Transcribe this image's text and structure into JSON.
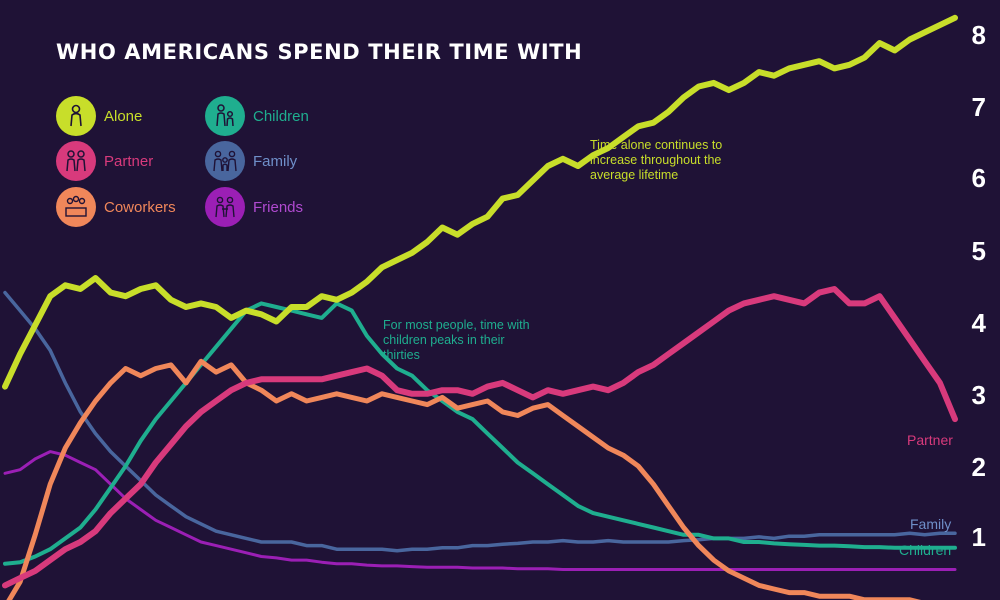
{
  "header": {
    "title": "WHO AMERICANS SPEND THEIR TIME WITH"
  },
  "legend": [
    {
      "key": "alone",
      "label": "Alone",
      "color": "#c8de2a",
      "icon": "person-icon"
    },
    {
      "key": "partner",
      "label": "Partner",
      "color": "#d83a7c",
      "icon": "couple-icon"
    },
    {
      "key": "coworkers",
      "label": "Coworkers",
      "color": "#f0875a",
      "icon": "coworkers-icon"
    },
    {
      "key": "children",
      "label": "Children",
      "color": "#1fae8f",
      "icon": "parent-child-icon"
    },
    {
      "key": "family",
      "label": "Family",
      "color": "#49669e",
      "icon": "family-icon"
    },
    {
      "key": "friends",
      "label": "Friends",
      "color": "#9b1fb5",
      "icon": "friends-icon"
    }
  ],
  "annotations": {
    "alone": "Time alone continues to increase throughout the average lifetime",
    "children": "For most people, time with children peaks in their thirties"
  },
  "end_labels": {
    "partner": "Partner",
    "family": "Family",
    "children": "Children"
  },
  "chart_data": {
    "type": "line",
    "title": "WHO AMERICANS SPEND THEIR TIME WITH",
    "xlabel": "",
    "ylabel": "",
    "x_start": 15,
    "x_step": 1,
    "y_ticks": [
      "1",
      "2",
      "3",
      "4",
      "5",
      "6",
      "7",
      "8"
    ],
    "ylim": [
      0.65,
      8.3
    ],
    "series": [
      {
        "name": "Alone",
        "color": "#c8de2a",
        "values": [
          3.15,
          3.6,
          4.0,
          4.4,
          4.55,
          4.5,
          4.65,
          4.45,
          4.4,
          4.5,
          4.55,
          4.35,
          4.25,
          4.3,
          4.25,
          4.1,
          4.2,
          4.15,
          4.05,
          4.25,
          4.25,
          4.4,
          4.35,
          4.45,
          4.6,
          4.8,
          4.9,
          5.0,
          5.15,
          5.35,
          5.25,
          5.4,
          5.5,
          5.75,
          5.8,
          6.0,
          6.2,
          6.3,
          6.2,
          6.35,
          6.45,
          6.6,
          6.75,
          6.8,
          6.95,
          7.15,
          7.3,
          7.35,
          7.25,
          7.35,
          7.5,
          7.45,
          7.55,
          7.6,
          7.65,
          7.55,
          7.6,
          7.7,
          7.9,
          7.8,
          7.95,
          8.05,
          8.15,
          8.25
        ]
      },
      {
        "name": "Partner",
        "color": "#d83a7c",
        "values": [
          0.4,
          0.5,
          0.6,
          0.75,
          0.9,
          1.0,
          1.15,
          1.4,
          1.6,
          1.8,
          2.1,
          2.35,
          2.6,
          2.8,
          2.95,
          3.1,
          3.2,
          3.25,
          3.25,
          3.25,
          3.25,
          3.25,
          3.3,
          3.35,
          3.4,
          3.3,
          3.1,
          3.05,
          3.05,
          3.1,
          3.1,
          3.05,
          3.15,
          3.2,
          3.1,
          3.0,
          3.1,
          3.05,
          3.1,
          3.15,
          3.1,
          3.2,
          3.35,
          3.45,
          3.6,
          3.75,
          3.9,
          4.05,
          4.2,
          4.3,
          4.35,
          4.4,
          4.35,
          4.3,
          4.45,
          4.5,
          4.3,
          4.3,
          4.4,
          4.1,
          3.8,
          3.5,
          3.2,
          2.7
        ]
      },
      {
        "name": "Coworkers",
        "color": "#f0875a",
        "values": [
          0.1,
          0.45,
          1.1,
          1.8,
          2.3,
          2.65,
          2.95,
          3.2,
          3.4,
          3.3,
          3.4,
          3.45,
          3.2,
          3.5,
          3.35,
          3.45,
          3.2,
          3.1,
          2.95,
          3.05,
          2.95,
          3.0,
          3.05,
          3.0,
          2.95,
          3.05,
          3.0,
          2.95,
          2.9,
          3.0,
          2.85,
          2.9,
          2.95,
          2.8,
          2.75,
          2.85,
          2.9,
          2.75,
          2.6,
          2.45,
          2.3,
          2.2,
          2.05,
          1.8,
          1.5,
          1.2,
          0.95,
          0.75,
          0.6,
          0.5,
          0.4,
          0.35,
          0.3,
          0.3,
          0.25,
          0.25,
          0.25,
          0.2,
          0.2,
          0.2,
          0.2,
          0.15,
          0.15,
          0.15
        ]
      },
      {
        "name": "Children",
        "color": "#1fae8f",
        "values": [
          0.7,
          0.72,
          0.8,
          0.9,
          1.05,
          1.2,
          1.45,
          1.75,
          2.05,
          2.4,
          2.7,
          2.95,
          3.2,
          3.45,
          3.7,
          3.95,
          4.2,
          4.3,
          4.25,
          4.2,
          4.15,
          4.1,
          4.3,
          4.2,
          3.85,
          3.6,
          3.4,
          3.3,
          3.1,
          2.95,
          2.8,
          2.7,
          2.5,
          2.3,
          2.1,
          1.95,
          1.8,
          1.65,
          1.5,
          1.4,
          1.35,
          1.3,
          1.25,
          1.2,
          1.15,
          1.1,
          1.1,
          1.05,
          1.05,
          1.0,
          1.0,
          0.98,
          0.97,
          0.96,
          0.95,
          0.95,
          0.94,
          0.93,
          0.93,
          0.92,
          0.92,
          0.92,
          0.92,
          0.92
        ]
      },
      {
        "name": "Family",
        "color": "#49669e",
        "values": [
          4.45,
          4.2,
          3.95,
          3.65,
          3.2,
          2.8,
          2.5,
          2.25,
          2.05,
          1.85,
          1.65,
          1.5,
          1.35,
          1.25,
          1.15,
          1.1,
          1.05,
          1.0,
          1.0,
          1.0,
          0.95,
          0.95,
          0.9,
          0.9,
          0.9,
          0.9,
          0.88,
          0.9,
          0.9,
          0.92,
          0.92,
          0.95,
          0.95,
          0.97,
          0.98,
          1.0,
          1.0,
          1.02,
          1.0,
          1.0,
          1.02,
          1.0,
          1.0,
          1.0,
          1.0,
          1.02,
          1.03,
          1.05,
          1.05,
          1.05,
          1.07,
          1.05,
          1.08,
          1.08,
          1.1,
          1.1,
          1.1,
          1.1,
          1.1,
          1.1,
          1.12,
          1.1,
          1.12,
          1.12
        ]
      },
      {
        "name": "Friends",
        "color": "#9b1fb5",
        "values": [
          1.95,
          2.0,
          2.15,
          2.25,
          2.2,
          2.1,
          2.0,
          1.8,
          1.6,
          1.45,
          1.3,
          1.2,
          1.1,
          1.0,
          0.95,
          0.9,
          0.85,
          0.8,
          0.78,
          0.75,
          0.75,
          0.72,
          0.7,
          0.7,
          0.68,
          0.67,
          0.67,
          0.66,
          0.65,
          0.65,
          0.65,
          0.64,
          0.64,
          0.64,
          0.63,
          0.63,
          0.63,
          0.62,
          0.62,
          0.62,
          0.62,
          0.62,
          0.62,
          0.62,
          0.62,
          0.62,
          0.62,
          0.62,
          0.62,
          0.62,
          0.62,
          0.62,
          0.62,
          0.62,
          0.62,
          0.62,
          0.62,
          0.62,
          0.62,
          0.62,
          0.62,
          0.62,
          0.62,
          0.62
        ]
      }
    ]
  }
}
